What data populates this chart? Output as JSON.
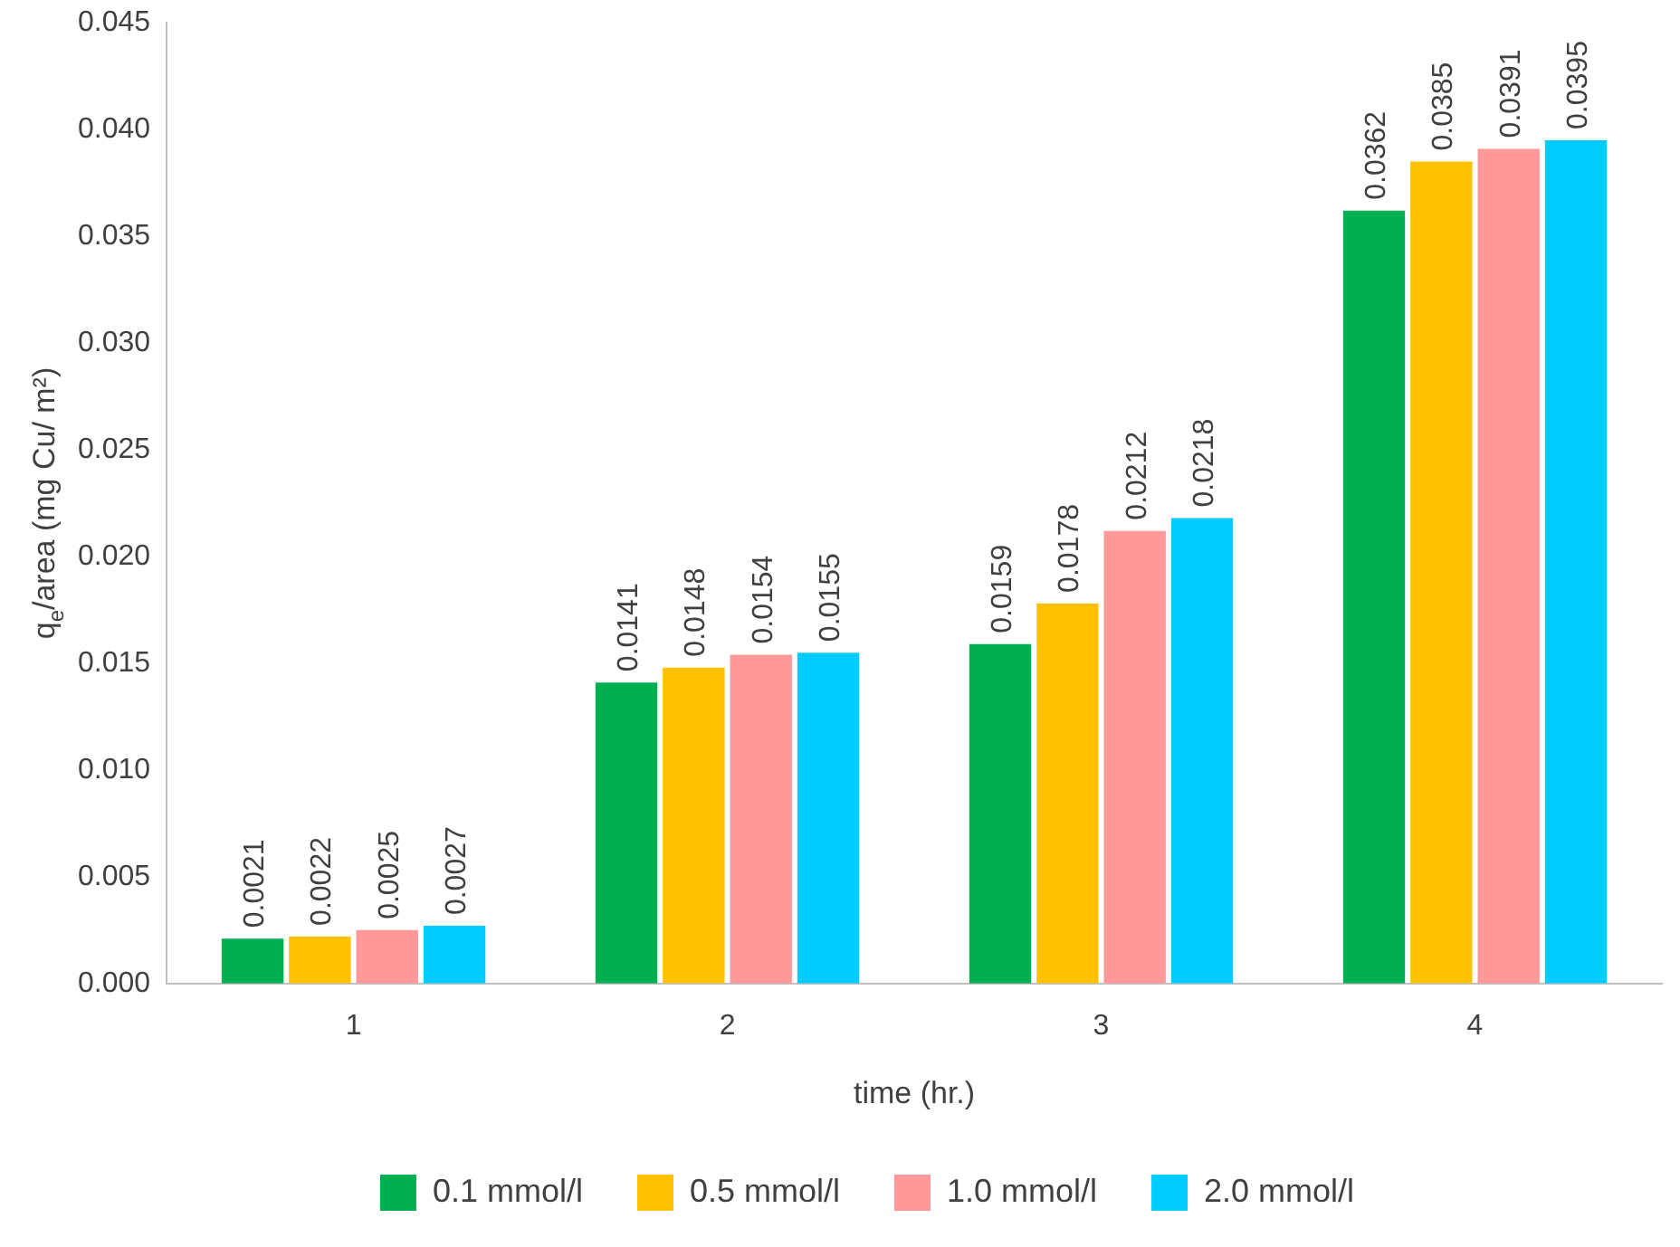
{
  "chart_data": {
    "type": "bar",
    "xlabel": "time (hr.)",
    "ylabel": "q$_{e}$/area (mg Cu/ m²)",
    "categories": [
      "1",
      "2",
      "3",
      "4"
    ],
    "series": [
      {
        "name": "0.1 mmol/l",
        "color": "#00b050",
        "values": [
          0.0021,
          0.0141,
          0.0159,
          0.0362
        ]
      },
      {
        "name": "0.5 mmol/l",
        "color": "#ffc000",
        "values": [
          0.0022,
          0.0148,
          0.0178,
          0.0385
        ]
      },
      {
        "name": "1.0 mmol/l",
        "color": "#ff9999",
        "values": [
          0.0025,
          0.0154,
          0.0212,
          0.0391
        ]
      },
      {
        "name": "2.0 mmol/l",
        "color": "#00ccff",
        "values": [
          0.0027,
          0.0155,
          0.0218,
          0.0395
        ]
      }
    ],
    "ylim": [
      0,
      0.045
    ],
    "yticks": [
      {
        "value": 0,
        "label": "0.000"
      },
      {
        "value": 0.005,
        "label": "0.005"
      },
      {
        "value": 0.01,
        "label": "0.010"
      },
      {
        "value": 0.015,
        "label": "0.015"
      },
      {
        "value": 0.02,
        "label": "0.020"
      },
      {
        "value": 0.025,
        "label": "0.025"
      },
      {
        "value": 0.03,
        "label": "0.030"
      },
      {
        "value": 0.035,
        "label": "0.035"
      },
      {
        "value": 0.04,
        "label": "0.040"
      },
      {
        "value": 0.045,
        "label": "0.045"
      }
    ],
    "data_labels": true,
    "legend": "bottom",
    "grid": false
  }
}
